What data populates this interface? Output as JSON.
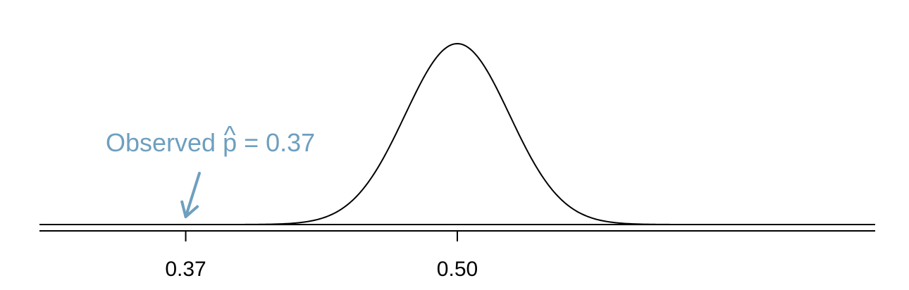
{
  "chart_data": {
    "type": "line",
    "distribution": "normal",
    "mean": 0.5,
    "sd": 0.025,
    "xlim": [
      0.3,
      0.7
    ],
    "ticks": [
      {
        "value": 0.37,
        "label": "0.37"
      },
      {
        "value": 0.5,
        "label": "0.50"
      }
    ],
    "annotation": {
      "prefix": "Observed ",
      "symbol": "p",
      "hat": "^",
      "suffix": " = 0.37",
      "points_to": 0.37
    },
    "colors": {
      "curve": "#000000",
      "annotation": "#6e9fbf"
    }
  }
}
